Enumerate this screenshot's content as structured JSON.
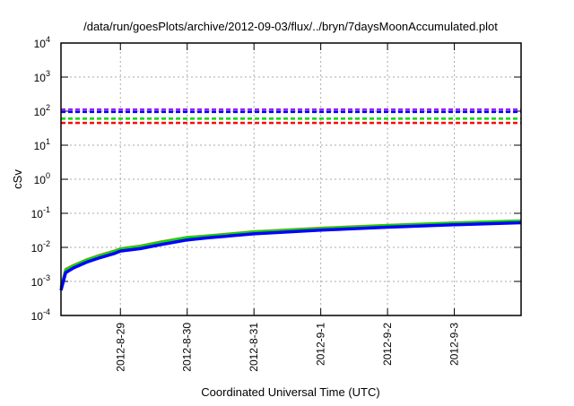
{
  "chart_data": {
    "type": "line",
    "title": "/data/run/goesPlots/archive/2012-09-03/flux/../bryn/7daysMoonAccumulated.plot",
    "xlabel": "Coordinated Universal Time (UTC)",
    "ylabel": "cSv",
    "yscale": "log",
    "ylim": [
      0.0001,
      10000
    ],
    "y_ticks": [
      {
        "base": "10",
        "exp": "-4",
        "value": 0.0001
      },
      {
        "base": "10",
        "exp": "-3",
        "value": 0.001
      },
      {
        "base": "10",
        "exp": "-2",
        "value": 0.01
      },
      {
        "base": "10",
        "exp": "-1",
        "value": 0.1
      },
      {
        "base": "10",
        "exp": "0",
        "value": 1
      },
      {
        "base": "10",
        "exp": "1",
        "value": 10
      },
      {
        "base": "10",
        "exp": "2",
        "value": 100
      },
      {
        "base": "10",
        "exp": "3",
        "value": 1000
      },
      {
        "base": "10",
        "exp": "4",
        "value": 10000
      }
    ],
    "x_unit": "days since 2012-08-29 00:00 UTC",
    "xlim": [
      -0.89,
      6.0
    ],
    "x_ticks": [
      {
        "label": "2012-8-29",
        "value": 0
      },
      {
        "label": "2012-8-30",
        "value": 1
      },
      {
        "label": "2012-8-31",
        "value": 2
      },
      {
        "label": "2012-9-1",
        "value": 3
      },
      {
        "label": "2012-9-2",
        "value": 4
      },
      {
        "label": "2012-9-3",
        "value": 5
      }
    ],
    "grid": true,
    "thresholds": [
      {
        "color": "#a020f0",
        "value": 112
      },
      {
        "color": "#0000ff",
        "value": 95
      },
      {
        "color": "#00dd00",
        "value": 60
      },
      {
        "color": "#ff0000",
        "value": 45
      }
    ],
    "series": [
      {
        "name": "red",
        "color": "#ff6040",
        "x": [
          -0.89,
          -0.82,
          -0.7,
          -0.5,
          -0.3,
          -0.1,
          0,
          0.3,
          0.6,
          1,
          1.3,
          2,
          3,
          4,
          5,
          6
        ],
        "y": [
          0.0007,
          0.0023,
          0.003,
          0.0044,
          0.006,
          0.0078,
          0.0092,
          0.011,
          0.0145,
          0.0198,
          0.022,
          0.029,
          0.037,
          0.045,
          0.053,
          0.061
        ]
      },
      {
        "name": "green",
        "color": "#00dd00",
        "x": [
          -0.89,
          -0.82,
          -0.7,
          -0.5,
          -0.3,
          -0.1,
          0,
          0.3,
          0.6,
          1,
          1.3,
          2,
          3,
          4,
          5,
          6
        ],
        "y": [
          0.00065,
          0.0022,
          0.0029,
          0.0043,
          0.0058,
          0.0076,
          0.009,
          0.0107,
          0.014,
          0.0195,
          0.0215,
          0.0285,
          0.036,
          0.044,
          0.052,
          0.06
        ]
      },
      {
        "name": "blue",
        "color": "#0000ff",
        "x": [
          -0.89,
          -0.82,
          -0.7,
          -0.5,
          -0.3,
          -0.1,
          0,
          0.3,
          0.6,
          1,
          1.3,
          2,
          3,
          4,
          5,
          6
        ],
        "y": [
          0.00055,
          0.0018,
          0.0025,
          0.0037,
          0.005,
          0.0065,
          0.0078,
          0.0092,
          0.012,
          0.0165,
          0.019,
          0.025,
          0.032,
          0.039,
          0.046,
          0.053
        ]
      }
    ]
  }
}
